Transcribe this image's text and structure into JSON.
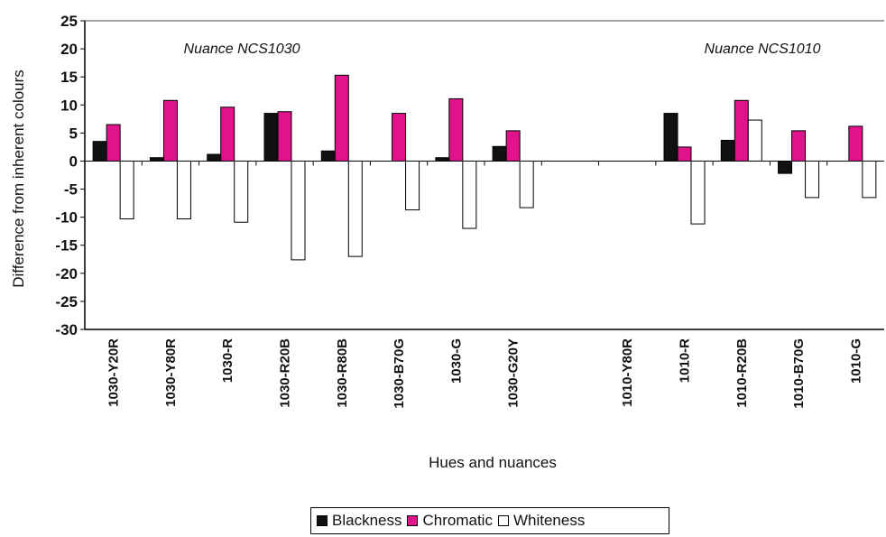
{
  "chart_data": {
    "type": "bar",
    "ylabel": "Difference from inherent colours",
    "xlabel": "Hues and nuances",
    "ylim": [
      -30,
      25
    ],
    "yticks": [
      25,
      20,
      15,
      10,
      5,
      0,
      -5,
      -10,
      -15,
      -20,
      -25,
      -30
    ],
    "grid": false,
    "legend_position": "bottom",
    "categories": [
      "1030-Y20R",
      "1030-Y80R",
      "1030-R",
      "1030-R20B",
      "1030-R80B",
      "1030-B70G",
      "1030-G",
      "1030-G20Y",
      "",
      "1010-Y80R",
      "1010-R",
      "1010-R20B",
      "1010-B70G",
      "1010-G"
    ],
    "series": [
      {
        "name": "Blackness",
        "color": "#111111",
        "values": [
          3.5,
          0.6,
          1.2,
          8.5,
          1.8,
          0,
          0.6,
          2.6,
          null,
          0,
          8.5,
          3.7,
          -2.2,
          0
        ]
      },
      {
        "name": "Chromatic",
        "color": "#e0138c",
        "values": [
          6.5,
          10.8,
          9.6,
          8.8,
          15.3,
          8.5,
          11.1,
          5.4,
          null,
          0,
          2.5,
          10.8,
          5.4,
          6.2
        ]
      },
      {
        "name": "Whiteness",
        "color": "#ffffff",
        "values": [
          -10.3,
          -10.3,
          -10.9,
          -17.6,
          -17.0,
          -8.7,
          -12.0,
          -8.3,
          null,
          0,
          -11.2,
          7.3,
          -6.5,
          -6.5
        ]
      }
    ],
    "annotations": [
      {
        "text": "Nuance NCS1030",
        "anchor": "1030-R20B"
      },
      {
        "text": "Nuance NCS1010",
        "anchor": "1010-R20B"
      }
    ]
  }
}
